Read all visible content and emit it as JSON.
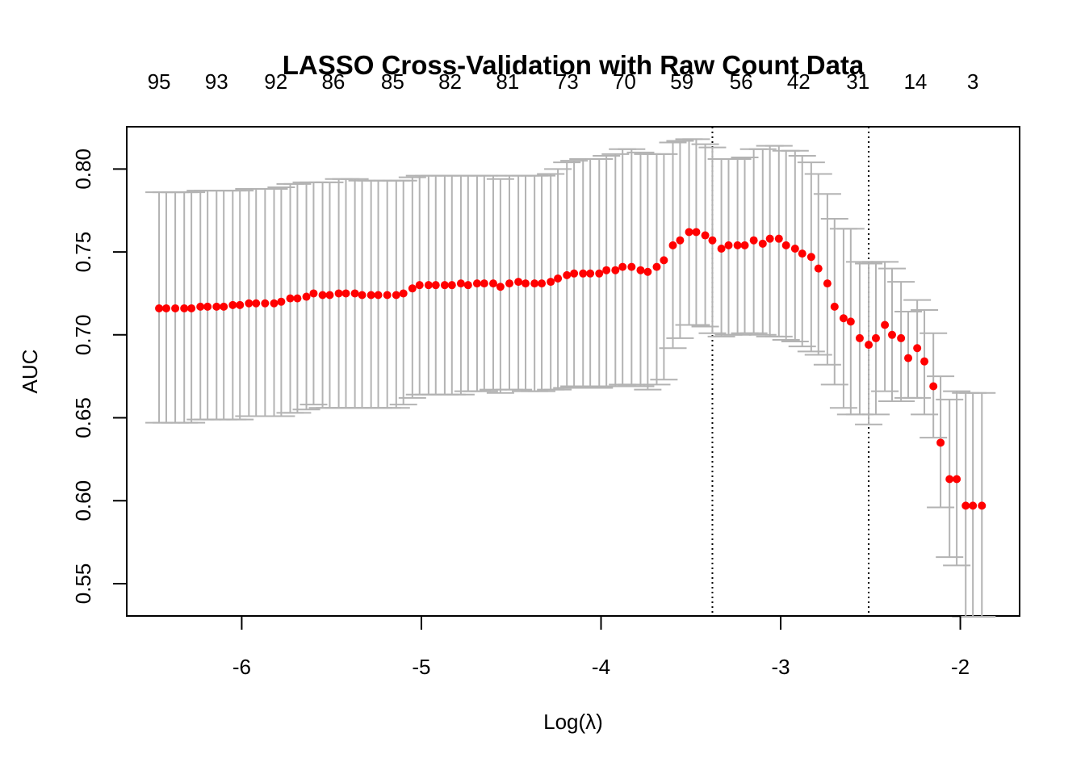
{
  "chart_data": {
    "type": "scatter",
    "title": "LASSO Cross-Validation with Raw Count Data",
    "xlabel": "Log(λ)",
    "ylabel": "AUC",
    "xlim": [
      -6.64,
      -1.67
    ],
    "ylim": [
      0.5305,
      0.8255
    ],
    "x_ticks": [
      -6,
      -5,
      -4,
      -3,
      -2
    ],
    "x_tick_labels": [
      "-6",
      "-5",
      "-4",
      "-3",
      "-2"
    ],
    "y_ticks": [
      0.55,
      0.6,
      0.65,
      0.7,
      0.75,
      0.8
    ],
    "y_tick_labels": [
      "0.55",
      "0.60",
      "0.65",
      "0.70",
      "0.75",
      "0.80"
    ],
    "top_axis": {
      "positions": [
        -6.46,
        -6.14,
        -5.81,
        -5.49,
        -5.16,
        -4.84,
        -4.52,
        -4.19,
        -3.87,
        -3.55,
        -3.22,
        -2.9,
        -2.57,
        -2.25,
        -1.93
      ],
      "labels": [
        "95",
        "93",
        "92",
        "86",
        "85",
        "82",
        "81",
        "73",
        "70",
        "59",
        "56",
        "42",
        "31",
        "14",
        "3"
      ]
    },
    "vlines": [
      -3.38,
      -2.51
    ],
    "grid": false,
    "legend": "none",
    "point_color": "#ff0000",
    "errorbar_color": "#b3b3b3",
    "series": [
      {
        "log_lambda": [
          -6.46,
          -6.42,
          -6.37,
          -6.32,
          -6.28,
          -6.23,
          -6.19,
          -6.14,
          -6.1,
          -6.05,
          -6.01,
          -5.96,
          -5.92,
          -5.87,
          -5.82,
          -5.78,
          -5.73,
          -5.69,
          -5.64,
          -5.6,
          -5.55,
          -5.51,
          -5.46,
          -5.42,
          -5.37,
          -5.33,
          -5.28,
          -5.24,
          -5.19,
          -5.14,
          -5.1,
          -5.05,
          -5.01,
          -4.96,
          -4.92,
          -4.87,
          -4.83,
          -4.78,
          -4.74,
          -4.69,
          -4.65,
          -4.6,
          -4.56,
          -4.51,
          -4.46,
          -4.42,
          -4.37,
          -4.33,
          -4.28,
          -4.24,
          -4.19,
          -4.15,
          -4.1,
          -4.06,
          -4.01,
          -3.97,
          -3.92,
          -3.88,
          -3.83,
          -3.78,
          -3.74,
          -3.69,
          -3.65,
          -3.6,
          -3.56,
          -3.51,
          -3.47,
          -3.42,
          -3.38,
          -3.33,
          -3.29,
          -3.24,
          -3.2,
          -3.15,
          -3.1,
          -3.06,
          -3.01,
          -2.97,
          -2.92,
          -2.88,
          -2.83,
          -2.79,
          -2.74,
          -2.7,
          -2.65,
          -2.61,
          -2.56,
          -2.51,
          -2.47,
          -2.42,
          -2.38,
          -2.33,
          -2.29,
          -2.24,
          -2.2,
          -2.15,
          -2.11,
          -2.06,
          -2.02,
          -1.97,
          -1.93,
          -1.88
        ],
        "auc": [
          0.716,
          0.716,
          0.716,
          0.716,
          0.716,
          0.717,
          0.717,
          0.717,
          0.717,
          0.718,
          0.718,
          0.719,
          0.719,
          0.719,
          0.719,
          0.72,
          0.722,
          0.722,
          0.723,
          0.725,
          0.724,
          0.724,
          0.725,
          0.725,
          0.725,
          0.724,
          0.724,
          0.724,
          0.724,
          0.724,
          0.725,
          0.728,
          0.73,
          0.73,
          0.73,
          0.73,
          0.73,
          0.731,
          0.73,
          0.731,
          0.731,
          0.731,
          0.729,
          0.731,
          0.732,
          0.731,
          0.731,
          0.731,
          0.732,
          0.734,
          0.736,
          0.737,
          0.737,
          0.737,
          0.737,
          0.739,
          0.739,
          0.741,
          0.741,
          0.739,
          0.738,
          0.741,
          0.745,
          0.754,
          0.757,
          0.762,
          0.762,
          0.76,
          0.757,
          0.752,
          0.754,
          0.754,
          0.754,
          0.757,
          0.755,
          0.758,
          0.758,
          0.754,
          0.752,
          0.749,
          0.747,
          0.74,
          0.731,
          0.717,
          0.71,
          0.708,
          0.698,
          0.694,
          0.698,
          0.706,
          0.7,
          0.698,
          0.686,
          0.692,
          0.684,
          0.669,
          0.635,
          0.613,
          0.613,
          0.597,
          0.597,
          0.597
        ],
        "lower": [
          0.647,
          0.647,
          0.647,
          0.647,
          0.647,
          0.649,
          0.649,
          0.649,
          0.649,
          0.649,
          0.649,
          0.651,
          0.651,
          0.651,
          0.651,
          0.651,
          0.653,
          0.653,
          0.655,
          0.658,
          0.656,
          0.656,
          0.656,
          0.656,
          0.656,
          0.656,
          0.656,
          0.656,
          0.656,
          0.656,
          0.658,
          0.662,
          0.664,
          0.664,
          0.664,
          0.664,
          0.664,
          0.664,
          0.666,
          0.666,
          0.666,
          0.667,
          0.665,
          0.667,
          0.667,
          0.666,
          0.666,
          0.666,
          0.667,
          0.667,
          0.668,
          0.669,
          0.669,
          0.668,
          0.668,
          0.669,
          0.669,
          0.67,
          0.67,
          0.669,
          0.667,
          0.67,
          0.673,
          0.692,
          0.698,
          0.706,
          0.706,
          0.705,
          0.701,
          0.699,
          0.7,
          0.7,
          0.701,
          0.701,
          0.7,
          0.699,
          0.699,
          0.697,
          0.696,
          0.693,
          0.69,
          0.688,
          0.682,
          0.67,
          0.656,
          0.652,
          0.652,
          0.646,
          0.652,
          0.666,
          0.66,
          0.66,
          0.662,
          0.662,
          0.652,
          0.638,
          0.596,
          0.566,
          0.561,
          0.53,
          0.53,
          0.53
        ],
        "upper": [
          0.786,
          0.786,
          0.786,
          0.786,
          0.786,
          0.787,
          0.787,
          0.787,
          0.787,
          0.787,
          0.787,
          0.788,
          0.788,
          0.788,
          0.788,
          0.789,
          0.791,
          0.791,
          0.792,
          0.792,
          0.792,
          0.792,
          0.794,
          0.794,
          0.794,
          0.793,
          0.793,
          0.793,
          0.793,
          0.793,
          0.793,
          0.795,
          0.796,
          0.796,
          0.796,
          0.796,
          0.796,
          0.796,
          0.796,
          0.796,
          0.796,
          0.796,
          0.794,
          0.796,
          0.796,
          0.796,
          0.796,
          0.796,
          0.797,
          0.8,
          0.804,
          0.805,
          0.806,
          0.806,
          0.806,
          0.808,
          0.809,
          0.812,
          0.812,
          0.81,
          0.809,
          0.809,
          0.809,
          0.816,
          0.817,
          0.818,
          0.818,
          0.815,
          0.813,
          0.806,
          0.806,
          0.806,
          0.807,
          0.812,
          0.812,
          0.814,
          0.814,
          0.811,
          0.811,
          0.808,
          0.804,
          0.797,
          0.785,
          0.77,
          0.764,
          0.764,
          0.744,
          0.743,
          0.744,
          0.744,
          0.74,
          0.732,
          0.714,
          0.721,
          0.715,
          0.701,
          0.675,
          0.661,
          0.666,
          0.665,
          0.665,
          0.665
        ]
      }
    ]
  }
}
